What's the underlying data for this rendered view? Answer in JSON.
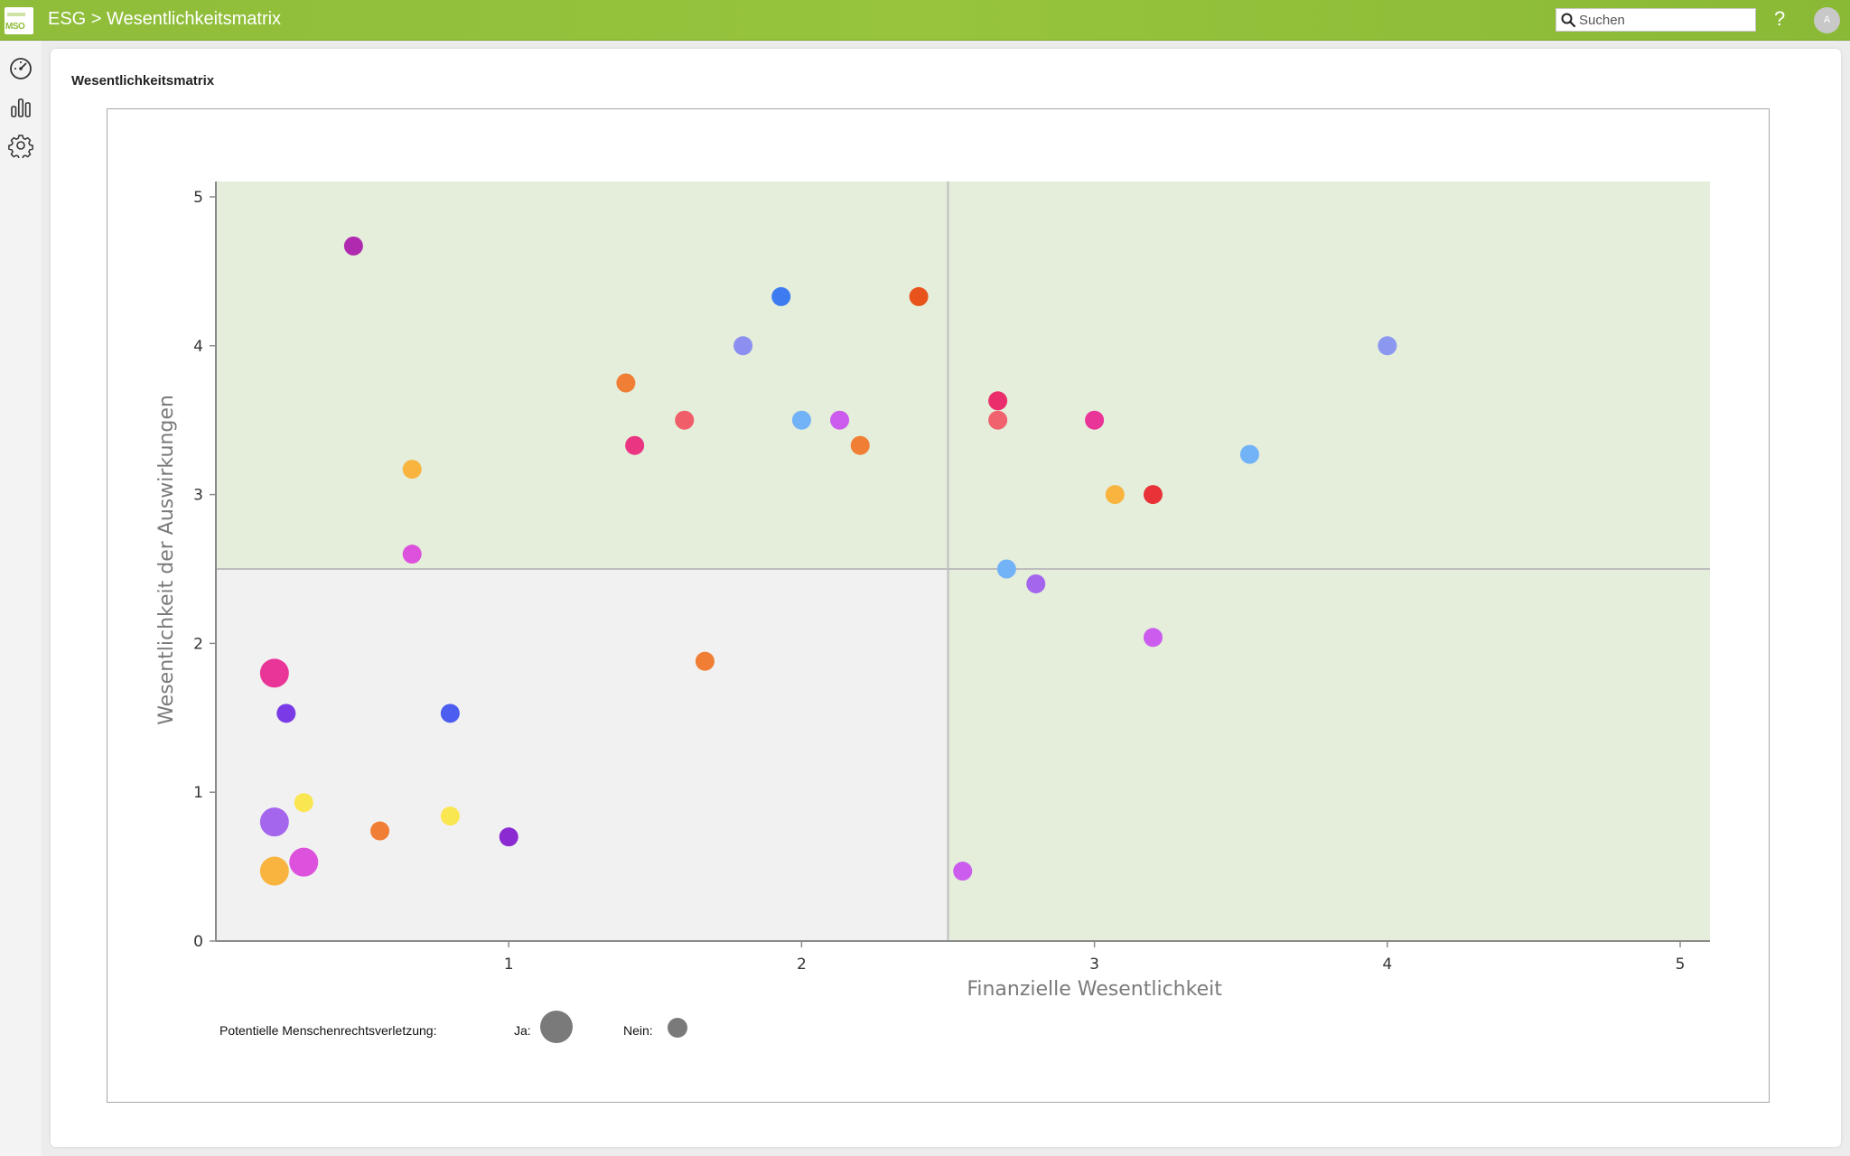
{
  "topbar": {
    "logo_text": "MSO",
    "breadcrumb": "ESG > Wesentlichkeitsmatrix",
    "search_placeholder": "Suchen",
    "help_label": "?",
    "avatar_initial": "A"
  },
  "sidebar": {
    "items": [
      {
        "icon": "dashboard-gauge-icon"
      },
      {
        "icon": "bar-chart-icon"
      },
      {
        "icon": "gear-icon"
      }
    ]
  },
  "panel": {
    "title": "Wesentlichkeitsmatrix"
  },
  "legend": {
    "label": "Potentielle Menschenrechtsverletzung:",
    "yes_label": "Ja:",
    "no_label": "Nein:"
  },
  "chart_data": {
    "type": "scatter",
    "xlabel": "Finanzielle Wesentlichkeit",
    "ylabel": "Wesentlichkeit der Auswirkungen",
    "xlim": [
      0,
      5
    ],
    "ylim": [
      0,
      5
    ],
    "xticks": [
      "1",
      "2",
      "3",
      "4",
      "5"
    ],
    "yticks": [
      "0",
      "1",
      "2",
      "3",
      "4",
      "5"
    ],
    "threshold": {
      "x": 2.5,
      "y": 2.5
    },
    "quadrant_colors": {
      "material": "#e4eedb",
      "not_material": "#f1f1f1",
      "divider": "#bdbdbd"
    },
    "points": [
      {
        "x": 0.47,
        "y": 4.67,
        "color": "#b02ab0",
        "large": false
      },
      {
        "x": 1.93,
        "y": 4.33,
        "color": "#3d7cf0",
        "large": false
      },
      {
        "x": 2.4,
        "y": 4.33,
        "color": "#e8531c",
        "large": false
      },
      {
        "x": 1.8,
        "y": 4.0,
        "color": "#8c8ff0",
        "large": false
      },
      {
        "x": 4.0,
        "y": 4.0,
        "color": "#8c97f0",
        "large": false
      },
      {
        "x": 1.4,
        "y": 3.75,
        "color": "#f07f35",
        "large": false
      },
      {
        "x": 2.67,
        "y": 3.63,
        "color": "#ea2d6b",
        "large": false
      },
      {
        "x": 1.6,
        "y": 3.5,
        "color": "#f05e6a",
        "large": false
      },
      {
        "x": 2.0,
        "y": 3.5,
        "color": "#72b2f7",
        "large": false
      },
      {
        "x": 2.13,
        "y": 3.5,
        "color": "#cb5cee",
        "large": false
      },
      {
        "x": 2.67,
        "y": 3.5,
        "color": "#f0636e",
        "large": false
      },
      {
        "x": 3.0,
        "y": 3.5,
        "color": "#ea3598",
        "large": false
      },
      {
        "x": 1.43,
        "y": 3.33,
        "color": "#ea3583",
        "large": false
      },
      {
        "x": 2.2,
        "y": 3.33,
        "color": "#f07f35",
        "large": false
      },
      {
        "x": 3.53,
        "y": 3.27,
        "color": "#72b2f7",
        "large": false
      },
      {
        "x": 0.67,
        "y": 3.17,
        "color": "#f8b43e",
        "large": false
      },
      {
        "x": 3.07,
        "y": 3.0,
        "color": "#f8b43e",
        "large": false
      },
      {
        "x": 3.2,
        "y": 3.0,
        "color": "#e83238",
        "large": false
      },
      {
        "x": 0.67,
        "y": 2.6,
        "color": "#dd52dd",
        "large": false
      },
      {
        "x": 2.7,
        "y": 2.5,
        "color": "#72b2f7",
        "large": false
      },
      {
        "x": 2.8,
        "y": 2.4,
        "color": "#a566ee",
        "large": false
      },
      {
        "x": 3.2,
        "y": 2.04,
        "color": "#cb5cee",
        "large": false
      },
      {
        "x": 1.67,
        "y": 1.88,
        "color": "#f07f35",
        "large": false
      },
      {
        "x": 0.2,
        "y": 1.8,
        "color": "#ea3598",
        "large": true
      },
      {
        "x": 0.24,
        "y": 1.53,
        "color": "#7a3ae6",
        "large": false
      },
      {
        "x": 0.8,
        "y": 1.53,
        "color": "#4b5ef0",
        "large": false
      },
      {
        "x": 0.3,
        "y": 0.93,
        "color": "#fae650",
        "large": false
      },
      {
        "x": 0.2,
        "y": 0.8,
        "color": "#a566ee",
        "large": true
      },
      {
        "x": 0.8,
        "y": 0.84,
        "color": "#fae650",
        "large": false
      },
      {
        "x": 0.56,
        "y": 0.74,
        "color": "#f07f35",
        "large": false
      },
      {
        "x": 1.0,
        "y": 0.7,
        "color": "#8a2ad0",
        "large": false
      },
      {
        "x": 0.3,
        "y": 0.53,
        "color": "#dd52dd",
        "large": true
      },
      {
        "x": 0.2,
        "y": 0.47,
        "color": "#f8b43e",
        "large": true
      },
      {
        "x": 2.55,
        "y": 0.47,
        "color": "#cb5cee",
        "large": false
      }
    ]
  }
}
